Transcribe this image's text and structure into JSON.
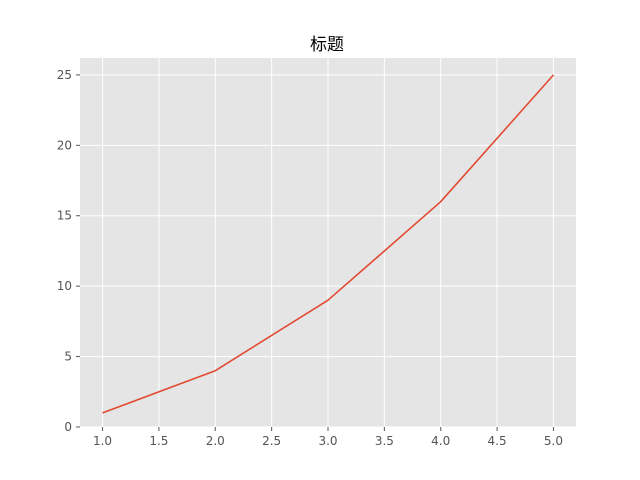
{
  "chart_data": {
    "type": "line",
    "title": "标题",
    "xlabel": "",
    "ylabel": "",
    "x": [
      1,
      2,
      3,
      4,
      5
    ],
    "series": [
      {
        "values": [
          1,
          4,
          9,
          16,
          25
        ]
      }
    ],
    "xlim": [
      0.8,
      5.2
    ],
    "ylim": [
      0,
      26.2
    ],
    "xticks": [
      1.0,
      1.5,
      2.0,
      2.5,
      3.0,
      3.5,
      4.0,
      4.5,
      5.0
    ],
    "xtick_labels": [
      "1.0",
      "1.5",
      "2.0",
      "2.5",
      "3.0",
      "3.5",
      "4.0",
      "4.5",
      "5.0"
    ],
    "yticks": [
      0,
      5,
      10,
      15,
      20,
      25
    ],
    "ytick_labels": [
      "0",
      "5",
      "10",
      "15",
      "20",
      "25"
    ],
    "grid": true,
    "colors": {
      "series": "#e24a33",
      "background": "#e5e5e5",
      "grid": "#ffffff"
    }
  }
}
